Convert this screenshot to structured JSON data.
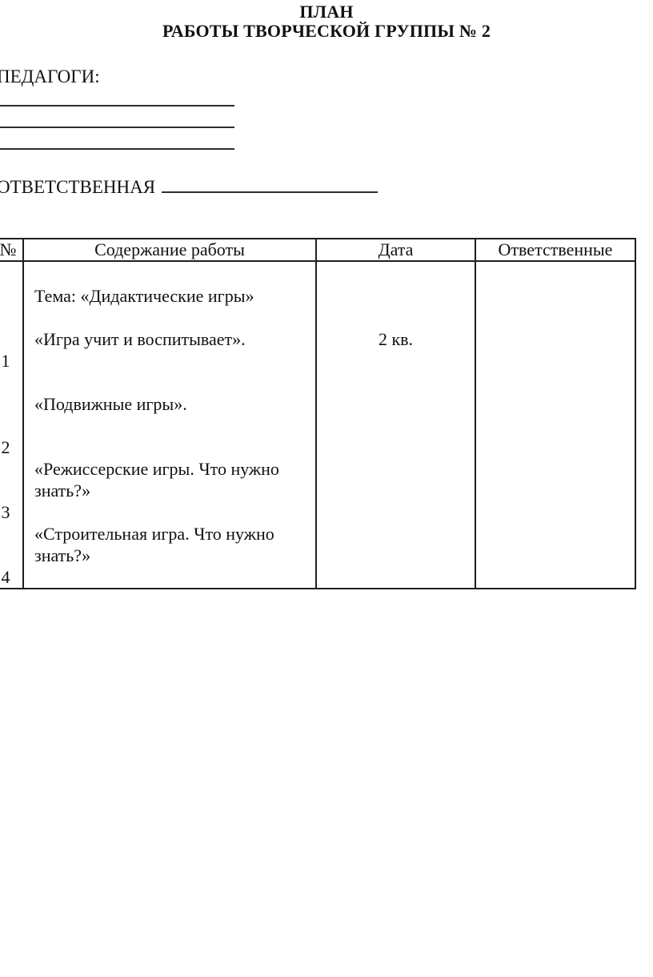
{
  "doc": {
    "title_line1": "ПЛАН",
    "title_line2": "РАБОТЫ ТВОРЧЕСКОЙ ГРУППЫ № 2",
    "teachers_label": "ПЕДАГОГИ:",
    "responsible_label": "ОТВЕТСТВЕННАЯ"
  },
  "table": {
    "headers": [
      "№",
      "Содержание работы",
      "Дата",
      "Ответственные"
    ],
    "body": {
      "number_lines": [
        "",
        "",
        "",
        "",
        "1",
        "",
        "",
        "",
        "2",
        "",
        "",
        "3",
        "",
        "",
        "4"
      ],
      "content_lines": [
        "",
        "Тема: «Дидактические игры»",
        "",
        "«Игра учит и воспитывает».",
        "",
        "",
        "«Подвижные игры».",
        "",
        "",
        "«Режиссерские игры. Что нужно знать?»",
        "",
        "«Строительная игра. Что нужно знать?»"
      ],
      "date_lines": [
        "",
        "",
        "",
        "2 кв."
      ],
      "responsible_lines": []
    }
  }
}
